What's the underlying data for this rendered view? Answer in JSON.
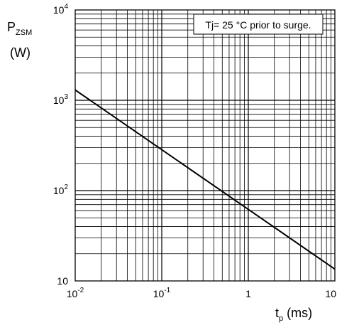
{
  "chart_data": {
    "type": "line",
    "title": "",
    "ylabel": {
      "symbol": "P",
      "subscript": "ZSM",
      "unit": "(W)"
    },
    "xlabel": {
      "symbol": "t",
      "subscript": "p",
      "unit": "(ms)"
    },
    "x_scale": "log",
    "y_scale": "log",
    "xlim": [
      0.01,
      10
    ],
    "ylim": [
      10,
      10000
    ],
    "grid": true,
    "x_ticks": [
      {
        "value": 0.01,
        "base": "10",
        "exp": "-2"
      },
      {
        "value": 0.1,
        "base": "10",
        "exp": "-1"
      },
      {
        "value": 1,
        "base": "1",
        "exp": ""
      },
      {
        "value": 10,
        "base": "10",
        "exp": ""
      }
    ],
    "y_ticks": [
      {
        "value": 10,
        "base": "10",
        "exp": ""
      },
      {
        "value": 100,
        "base": "10",
        "exp": "2"
      },
      {
        "value": 1000,
        "base": "10",
        "exp": "3"
      },
      {
        "value": 10000,
        "base": "10",
        "exp": "4"
      }
    ],
    "annotation": "Tj= 25 °C prior to surge.",
    "series": [
      {
        "x": [
          0.01,
          10
        ],
        "y": [
          1300,
          13.5
        ]
      }
    ]
  }
}
